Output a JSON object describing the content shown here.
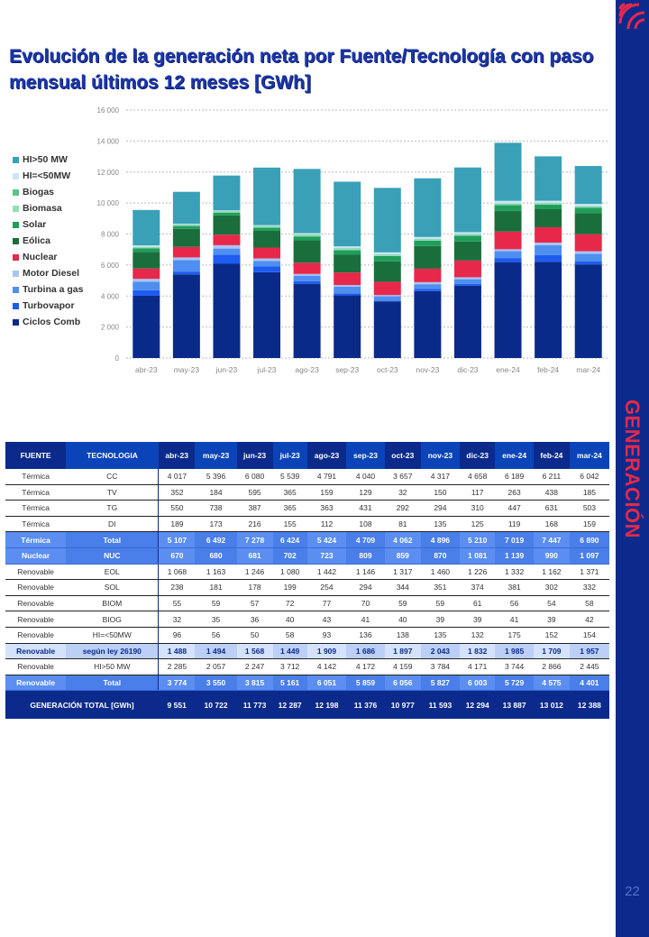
{
  "title": "Evolución de la generación neta por Fuente/Tecnología con paso mensual últimos 12 meses [GWh]",
  "section": "GENERACIÓN",
  "page_number": "22",
  "chart_data": {
    "type": "bar",
    "stacked": true,
    "categories": [
      "abr-23",
      "may-23",
      "jun-23",
      "jul-23",
      "ago-23",
      "sep-23",
      "oct-23",
      "nov-23",
      "dic-23",
      "ene-24",
      "feb-24",
      "mar-24"
    ],
    "ylim": [
      0,
      16000
    ],
    "yticks": [
      "0",
      "2 000",
      "4 000",
      "6 000",
      "8 000",
      "10 000",
      "12 000",
      "14 000",
      "16 000"
    ],
    "legend_position": "left",
    "series": [
      {
        "name": "Ciclos Comb",
        "color": "#0a2a8a",
        "values": [
          4017,
          5396,
          6080,
          5539,
          4791,
          4040,
          3657,
          4317,
          4658,
          6189,
          6211,
          6042
        ]
      },
      {
        "name": "Turbovapor",
        "color": "#1e5cf0",
        "values": [
          352,
          184,
          595,
          365,
          159,
          129,
          32,
          150,
          117,
          263,
          438,
          185
        ]
      },
      {
        "name": "Turbina a gas",
        "color": "#4f8ff0",
        "values": [
          550,
          738,
          387,
          365,
          363,
          431,
          292,
          294,
          310,
          447,
          631,
          503
        ]
      },
      {
        "name": "Motor Diesel",
        "color": "#a9c4f5",
        "values": [
          189,
          173,
          216,
          155,
          112,
          108,
          81,
          135,
          125,
          119,
          168,
          159
        ]
      },
      {
        "name": "Nuclear",
        "color": "#e8284a",
        "values": [
          670,
          680,
          681,
          702,
          723,
          809,
          859,
          870,
          1081,
          1139,
          990,
          1097
        ]
      },
      {
        "name": "Eólica",
        "color": "#1a6e3c",
        "values": [
          1068,
          1163,
          1246,
          1080,
          1442,
          1146,
          1317,
          1460,
          1226,
          1332,
          1162,
          1371
        ]
      },
      {
        "name": "Solar",
        "color": "#1f9e5a",
        "values": [
          238,
          181,
          178,
          199,
          254,
          294,
          344,
          351,
          374,
          381,
          302,
          332
        ]
      },
      {
        "name": "Biomasa",
        "color": "#8fe0b4",
        "values": [
          55,
          59,
          57,
          72,
          77,
          70,
          59,
          59,
          61,
          56,
          54,
          58
        ]
      },
      {
        "name": "Biogas",
        "color": "#5cc28a",
        "values": [
          32,
          35,
          36,
          40,
          43,
          41,
          40,
          39,
          39,
          41,
          39,
          42
        ]
      },
      {
        "name": "HI=<50MW",
        "color": "#c9e6f5",
        "values": [
          96,
          56,
          50,
          58,
          93,
          136,
          138,
          135,
          132,
          175,
          152,
          154
        ]
      },
      {
        "name": "HI>50 MW",
        "color": "#3aa0b8",
        "values": [
          2285,
          2057,
          2247,
          3712,
          4142,
          4172,
          4159,
          3784,
          4171,
          3744,
          2866,
          2445
        ]
      }
    ]
  },
  "table": {
    "headers": [
      "FUENTE",
      "TECNOLOGIA",
      "abr-23",
      "may-23",
      "jun-23",
      "jul-23",
      "ago-23",
      "sep-23",
      "oct-23",
      "nov-23",
      "dic-23",
      "ene-24",
      "feb-24",
      "mar-24"
    ],
    "rows": [
      {
        "type": "",
        "cells": [
          "Térmica",
          "CC",
          "4 017",
          "5 396",
          "6 080",
          "5 539",
          "4 791",
          "4 040",
          "3 657",
          "4 317",
          "4 658",
          "6 189",
          "6 211",
          "6 042"
        ]
      },
      {
        "type": "",
        "cells": [
          "Térmica",
          "TV",
          "352",
          "184",
          "595",
          "365",
          "159",
          "129",
          "32",
          "150",
          "117",
          "263",
          "438",
          "185"
        ]
      },
      {
        "type": "",
        "cells": [
          "Térmica",
          "TG",
          "550",
          "738",
          "387",
          "365",
          "363",
          "431",
          "292",
          "294",
          "310",
          "447",
          "631",
          "503"
        ]
      },
      {
        "type": "",
        "cells": [
          "Térmica",
          "DI",
          "189",
          "173",
          "216",
          "155",
          "112",
          "108",
          "81",
          "135",
          "125",
          "119",
          "168",
          "159"
        ]
      },
      {
        "type": "tot",
        "cells": [
          "Térmica",
          "Total",
          "5 107",
          "6 492",
          "7 278",
          "6 424",
          "5 424",
          "4 709",
          "4 062",
          "4 896",
          "5 210",
          "7 019",
          "7 447",
          "6 890"
        ]
      },
      {
        "type": "tot",
        "cells": [
          "Nuclear",
          "NUC",
          "670",
          "680",
          "681",
          "702",
          "723",
          "809",
          "859",
          "870",
          "1 081",
          "1 139",
          "990",
          "1 097"
        ]
      },
      {
        "type": "",
        "cells": [
          "Renovable",
          "EOL",
          "1 068",
          "1 163",
          "1 246",
          "1 080",
          "1 442",
          "1 146",
          "1 317",
          "1 460",
          "1 226",
          "1 332",
          "1 162",
          "1 371"
        ]
      },
      {
        "type": "",
        "cells": [
          "Renovable",
          "SOL",
          "238",
          "181",
          "178",
          "199",
          "254",
          "294",
          "344",
          "351",
          "374",
          "381",
          "302",
          "332"
        ]
      },
      {
        "type": "",
        "cells": [
          "Renovable",
          "BIOM",
          "55",
          "59",
          "57",
          "72",
          "77",
          "70",
          "59",
          "59",
          "61",
          "56",
          "54",
          "58"
        ]
      },
      {
        "type": "",
        "cells": [
          "Renovable",
          "BIOG",
          "32",
          "35",
          "36",
          "40",
          "43",
          "41",
          "40",
          "39",
          "39",
          "41",
          "39",
          "42"
        ]
      },
      {
        "type": "",
        "cells": [
          "Renovable",
          "HI=<50MW",
          "96",
          "56",
          "50",
          "58",
          "93",
          "136",
          "138",
          "135",
          "132",
          "175",
          "152",
          "154"
        ]
      },
      {
        "type": "ley",
        "cells": [
          "Renovable",
          "según ley 26190",
          "1 488",
          "1 494",
          "1 568",
          "1 449",
          "1 909",
          "1 686",
          "1 897",
          "2 043",
          "1 832",
          "1 985",
          "1 709",
          "1 957"
        ]
      },
      {
        "type": "",
        "cells": [
          "Renovable",
          "HI>50 MW",
          "2 285",
          "2 057",
          "2 247",
          "3 712",
          "4 142",
          "4 172",
          "4 159",
          "3 784",
          "4 171",
          "3 744",
          "2 866",
          "2 445"
        ]
      },
      {
        "type": "tot",
        "cells": [
          "Renovable",
          "Total",
          "3 774",
          "3 550",
          "3 815",
          "5 161",
          "6 051",
          "5 859",
          "6 056",
          "5 827",
          "6 003",
          "5 729",
          "4 575",
          "4 401"
        ]
      }
    ],
    "grand_total": {
      "label": "GENERACIÓN TOTAL [GWh]",
      "values": [
        "9 551",
        "10 722",
        "11 773",
        "12 287",
        "12 198",
        "11 376",
        "10 977",
        "11 593",
        "12 294",
        "13 887",
        "13 012",
        "12 388"
      ]
    }
  }
}
